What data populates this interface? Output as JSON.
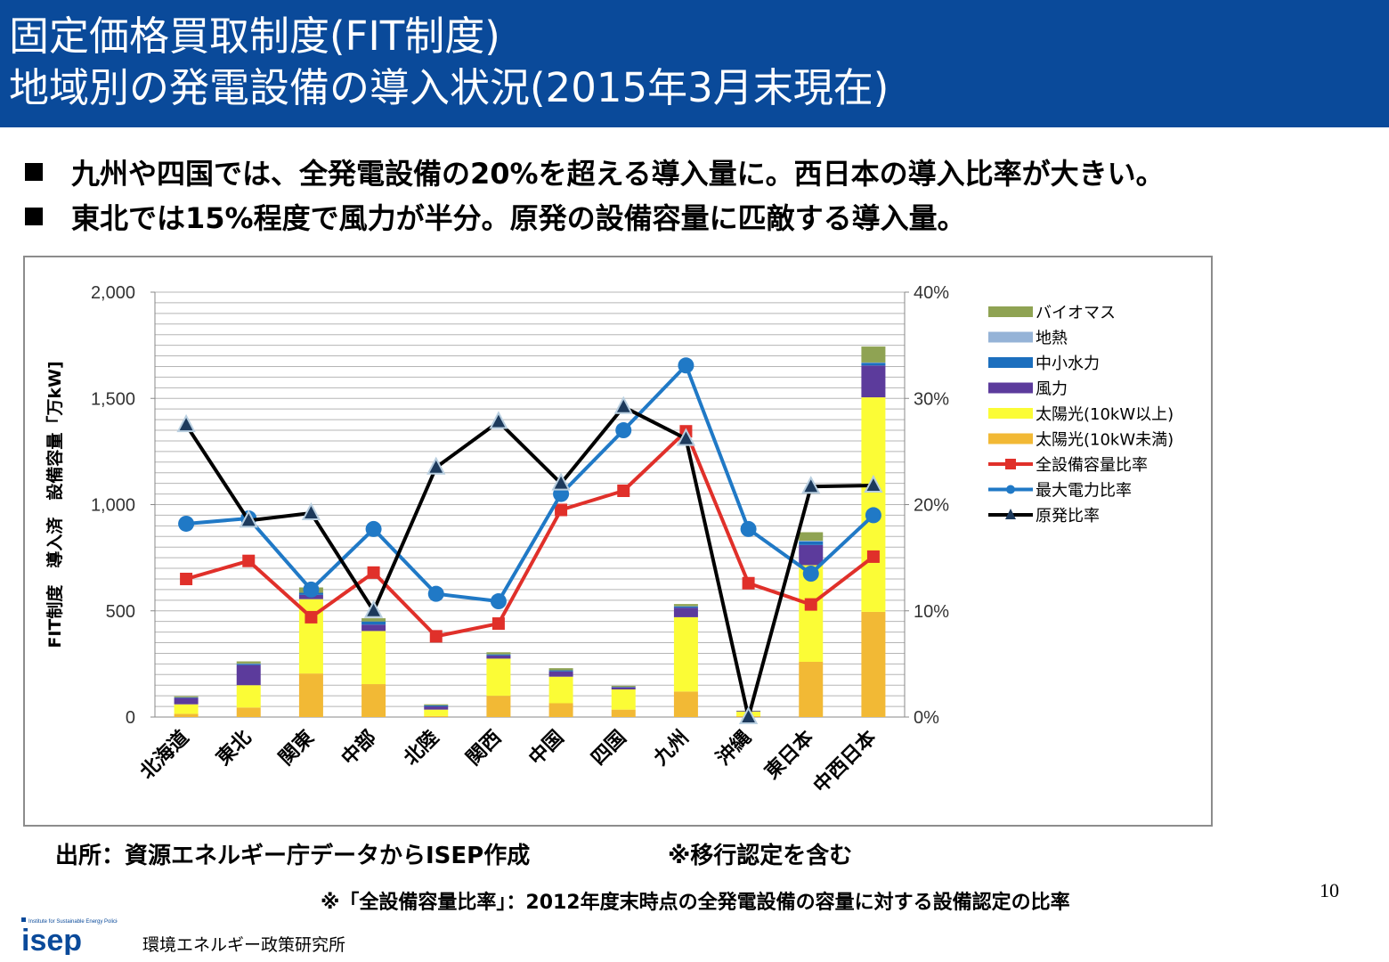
{
  "title": {
    "line1": "固定価格買取制度(FIT制度)",
    "line2": "地域別の発電設備の導入状況(2015年3月末現在)"
  },
  "bullets": [
    "九州や四国では、全発電設備の20%を超える導入量に。西日本の導入比率が大きい。",
    "東北では15%程度で風力が半分。原発の設備容量に匹敵する導入量。"
  ],
  "chart_data": {
    "type": "bar",
    "stacked": true,
    "categories": [
      "北海道",
      "東北",
      "関東",
      "中部",
      "北陸",
      "関西",
      "中国",
      "四国",
      "九州",
      "沖縄",
      "東日本",
      "中西日本"
    ],
    "ylabel": "FIT制度　導入済　設備容量「万kW]",
    "ylim": [
      0,
      2000
    ],
    "yticks": [
      "0",
      "500",
      "1,000",
      "1,500",
      "2,000"
    ],
    "y2lim": [
      0,
      40
    ],
    "y2ticks": [
      "0%",
      "10%",
      "20%",
      "30%",
      "40%"
    ],
    "grid": true,
    "legend_position": "right",
    "bar_series": [
      {
        "name": "太陽光(10kW未満)",
        "color": "#f2b935",
        "values": [
          15,
          45,
          205,
          155,
          5,
          100,
          65,
          35,
          120,
          5,
          260,
          495
        ]
      },
      {
        "name": "太陽光(10kW以上)",
        "color": "#fbfc36",
        "values": [
          45,
          105,
          350,
          250,
          30,
          175,
          125,
          95,
          350,
          20,
          455,
          1010
        ]
      },
      {
        "name": "風力",
        "color": "#5c3b9c",
        "values": [
          30,
          95,
          20,
          30,
          15,
          15,
          25,
          10,
          45,
          3,
          95,
          150
        ]
      },
      {
        "name": "中小水力",
        "color": "#1c6fbe",
        "values": [
          2,
          5,
          10,
          15,
          5,
          5,
          5,
          2,
          5,
          0,
          17,
          12
        ]
      },
      {
        "name": "地熱",
        "color": "#95b3d7",
        "values": [
          1,
          2,
          0,
          0,
          0,
          0,
          0,
          0,
          2,
          0,
          3,
          2
        ]
      },
      {
        "name": "バイオマス",
        "color": "#8fa353",
        "values": [
          5,
          10,
          25,
          15,
          5,
          10,
          10,
          5,
          10,
          2,
          40,
          75
        ]
      }
    ],
    "line_series": [
      {
        "name": "全設備容量比率",
        "color": "#e0302a",
        "marker": "square",
        "values": [
          13.0,
          14.7,
          9.4,
          13.6,
          7.6,
          8.8,
          19.5,
          21.3,
          26.9,
          12.6,
          10.6,
          15.1
        ]
      },
      {
        "name": "最大電力比率",
        "color": "#2079c6",
        "marker": "circle",
        "values": [
          18.2,
          18.7,
          12.0,
          17.7,
          11.6,
          10.9,
          21.0,
          27.0,
          33.1,
          17.7,
          13.5,
          19.0
        ]
      },
      {
        "name": "原発比率",
        "color": "#000000",
        "marker": "triangle",
        "values": [
          27.5,
          18.5,
          19.2,
          10.0,
          23.5,
          27.8,
          22.0,
          29.2,
          26.2,
          0,
          21.7,
          21.8
        ]
      }
    ]
  },
  "source": "出所：資源エネルギー庁データからISEP作成",
  "note_transition": "※移行認定を含む",
  "footnote": "※「全設備容量比率」：2012年度末時点の全発電設備の容量に対する設備認定の比率",
  "page_number": "10",
  "logo_text": "isep",
  "logo_tagline": "Institute for Sustainable Energy Policies",
  "organization": "環境エネルギー政策研究所",
  "colors": {
    "title_bar": "#0a4a9a",
    "grid": "#b5b5b5",
    "frame": "#8c8c8c"
  }
}
